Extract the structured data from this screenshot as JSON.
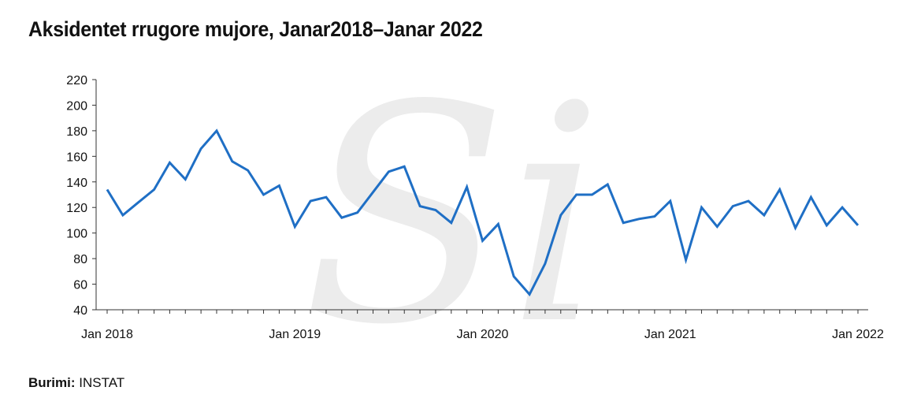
{
  "title": "Aksidentet rrugore mujore, Janar2018–Janar 2022",
  "source": {
    "label": "Burimi:",
    "value": "INSTAT"
  },
  "watermark_text": "Si",
  "colors": {
    "line": "#1f6fc5",
    "axis": "#333333",
    "text": "#111111",
    "watermark": "#ececec"
  },
  "chart_data": {
    "type": "line",
    "title": "Aksidentet rrugore mujore, Janar2018–Janar 2022",
    "xlabel": "",
    "ylabel": "",
    "ylim": [
      40,
      220
    ],
    "yticks": [
      40,
      60,
      80,
      100,
      120,
      140,
      160,
      180,
      200,
      220
    ],
    "xtick_labels": [
      {
        "label": "Jan 2018",
        "month": 0
      },
      {
        "label": "Jan 2019",
        "month": 12
      },
      {
        "label": "Jan 2020",
        "month": 24
      },
      {
        "label": "Jan 2021",
        "month": 36
      },
      {
        "label": "Jan 2022",
        "month": 48
      }
    ],
    "grid": false,
    "legend": "none",
    "series": [
      {
        "values": [
          134,
          114,
          124,
          134,
          155,
          142,
          166,
          180,
          156,
          149,
          130,
          137,
          105,
          125,
          128,
          112,
          116,
          132,
          148,
          152,
          121,
          118,
          108,
          136,
          94,
          107,
          66,
          52,
          76,
          114,
          130,
          130,
          138,
          108,
          111,
          113,
          125,
          79,
          120,
          105,
          121,
          125,
          114,
          134,
          104,
          128,
          106,
          120,
          106
        ]
      }
    ]
  }
}
